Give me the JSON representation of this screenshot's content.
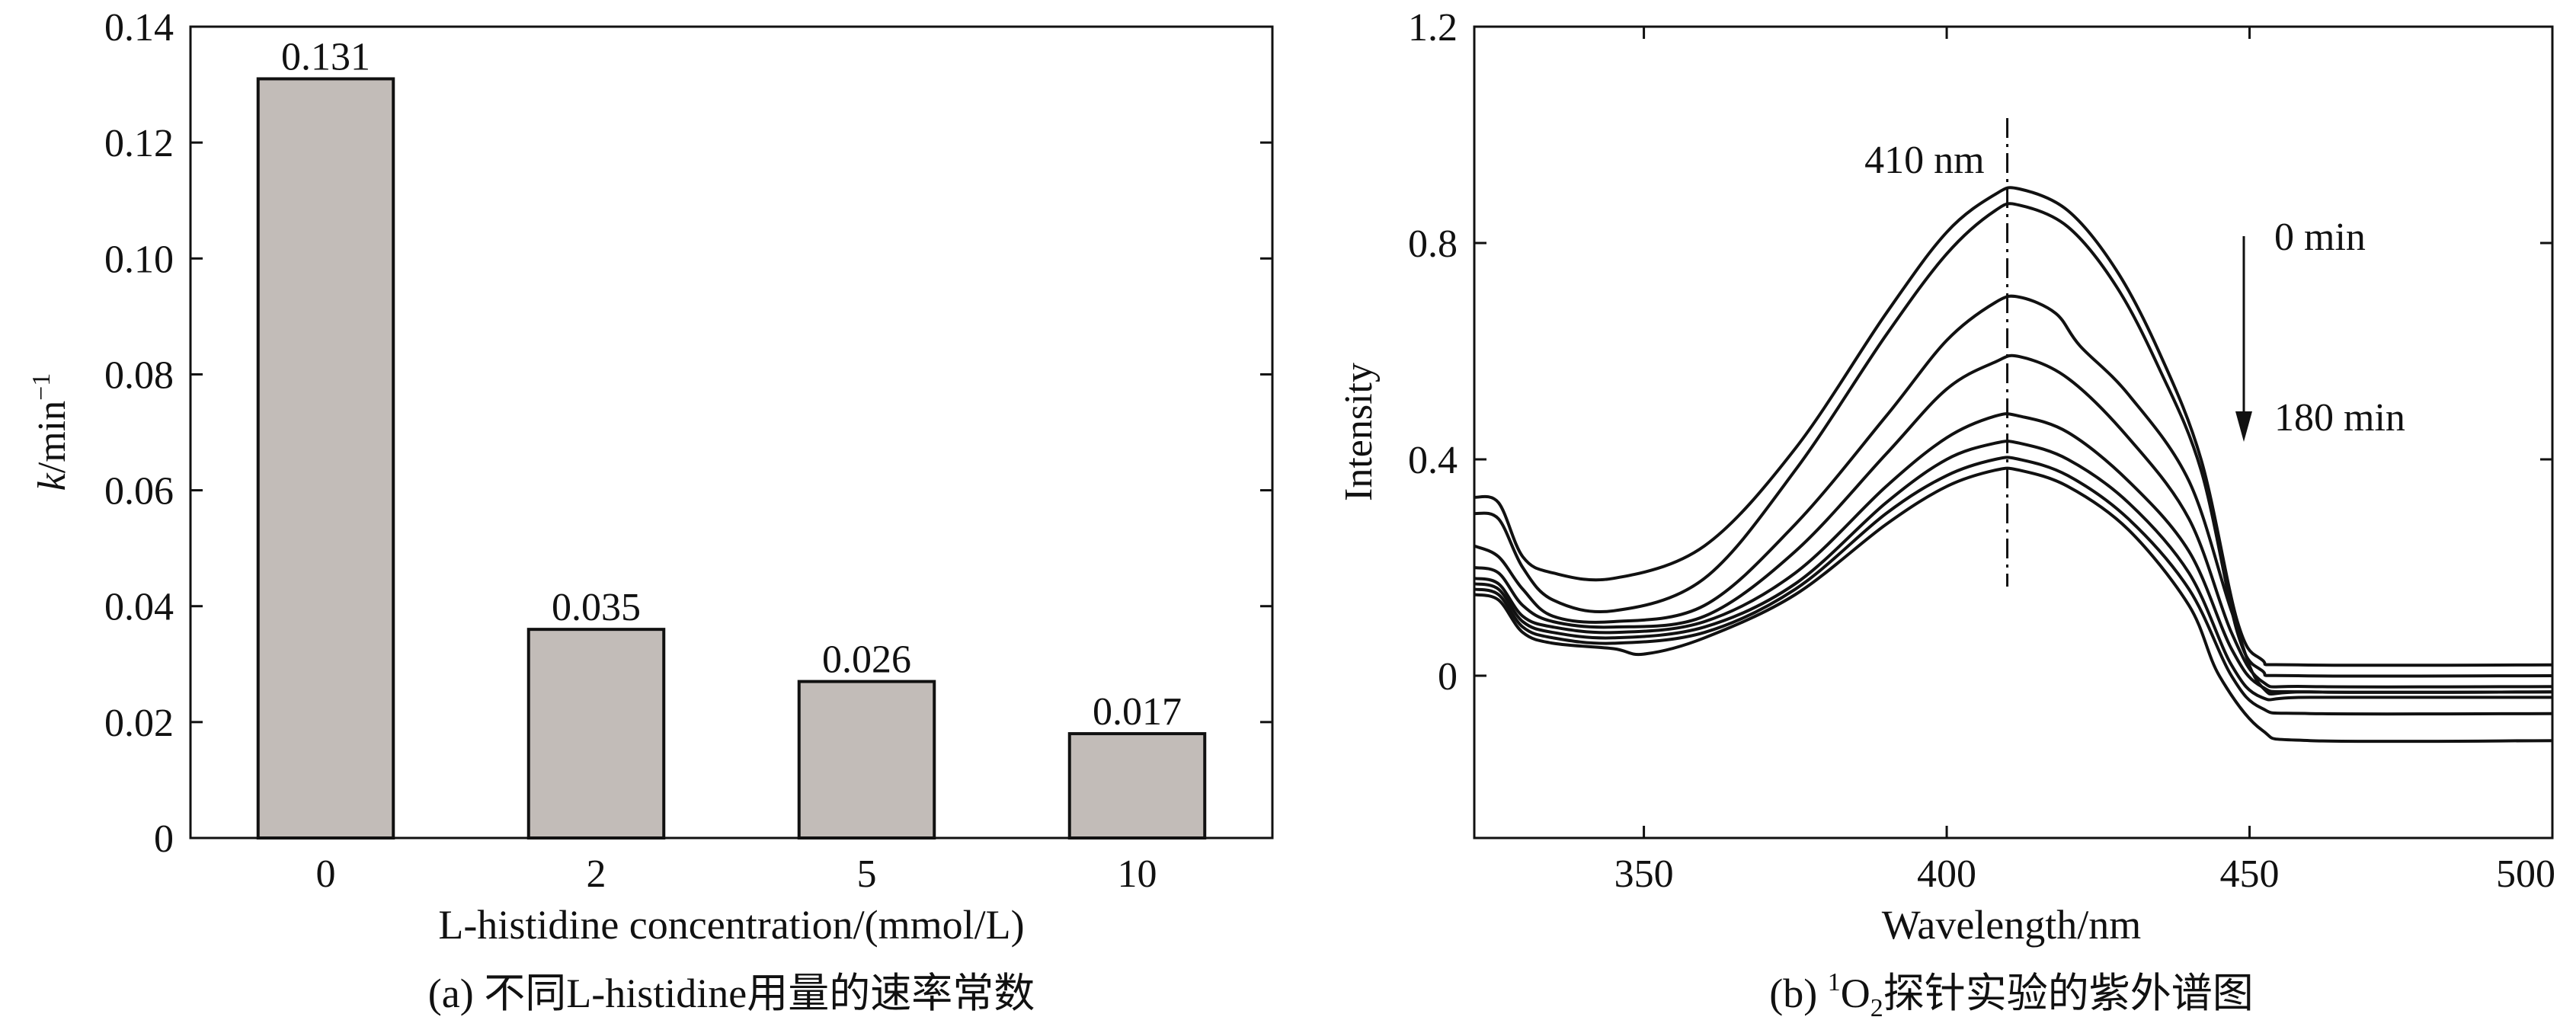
{
  "chart_data": [
    {
      "type": "bar",
      "caption": "(a) 不同L-histidine用量的速率常数",
      "xlabel": "L-histidine concentration/(mmol/L)",
      "ylabel_main": "k",
      "ylabel_unit": "/min",
      "ylabel_exp": "−1",
      "categories": [
        "0",
        "2",
        "5",
        "10"
      ],
      "values": [
        0.131,
        0.035,
        0.026,
        0.017
      ],
      "data_labels": [
        "0.131",
        "0.035",
        "0.026",
        "0.017"
      ],
      "ylim": [
        0,
        0.14
      ],
      "yticks": [
        0,
        0.02,
        0.04,
        0.06,
        0.08,
        0.1,
        0.12,
        0.14
      ],
      "ytick_labels": [
        "0",
        "0.02",
        "0.04",
        "0.06",
        "0.08",
        "0.10",
        "0.12",
        "0.14"
      ],
      "bar_value_heights": [
        0.131,
        0.036,
        0.027,
        0.018
      ],
      "bar_color": "#c2bcb8"
    },
    {
      "type": "line",
      "caption_prefix": "(b) ",
      "caption_sup": "1",
      "caption_o": "O",
      "caption_sub": "2",
      "caption_suffix": "探针实验的紫外谱图",
      "xlabel": "Wavelength/nm",
      "ylabel": "Intensity",
      "xlim": [
        322,
        500
      ],
      "ylim": [
        -0.3,
        1.2
      ],
      "xticks": [
        350,
        400,
        450,
        500
      ],
      "xtick_labels": [
        "350",
        "400",
        "450",
        "500"
      ],
      "yticks": [
        0,
        0.4,
        0.8,
        1.2
      ],
      "ytick_labels": [
        "0",
        "0.4",
        "0.8",
        "1.2"
      ],
      "reference_line_x": 410,
      "reference_label": "410 nm",
      "arrow_start_label": "0 min",
      "arrow_end_label": "180 min",
      "series": [
        {
          "name": "s1",
          "points": [
            [
              322,
              0.33
            ],
            [
              326,
              0.32
            ],
            [
              330,
              0.22
            ],
            [
              335,
              0.19
            ],
            [
              345,
              0.18
            ],
            [
              360,
              0.24
            ],
            [
              375,
              0.42
            ],
            [
              390,
              0.67
            ],
            [
              400,
              0.82
            ],
            [
              408,
              0.89
            ],
            [
              412,
              0.9
            ],
            [
              420,
              0.86
            ],
            [
              428,
              0.75
            ],
            [
              435,
              0.6
            ],
            [
              442,
              0.4
            ],
            [
              448,
              0.1
            ],
            [
              452,
              0.03
            ],
            [
              458,
              0.02
            ],
            [
              500,
              0.02
            ]
          ]
        },
        {
          "name": "s2",
          "points": [
            [
              322,
              0.3
            ],
            [
              326,
              0.29
            ],
            [
              330,
              0.2
            ],
            [
              335,
              0.14
            ],
            [
              345,
              0.12
            ],
            [
              360,
              0.18
            ],
            [
              375,
              0.38
            ],
            [
              390,
              0.63
            ],
            [
              400,
              0.78
            ],
            [
              408,
              0.86
            ],
            [
              412,
              0.87
            ],
            [
              420,
              0.83
            ],
            [
              428,
              0.72
            ],
            [
              435,
              0.57
            ],
            [
              442,
              0.38
            ],
            [
              448,
              0.08
            ],
            [
              452,
              0.01
            ],
            [
              458,
              0.0
            ],
            [
              500,
              0.0
            ]
          ]
        },
        {
          "name": "s3",
          "points": [
            [
              322,
              0.24
            ],
            [
              326,
              0.22
            ],
            [
              330,
              0.16
            ],
            [
              335,
              0.11
            ],
            [
              345,
              0.1
            ],
            [
              360,
              0.13
            ],
            [
              375,
              0.28
            ],
            [
              390,
              0.48
            ],
            [
              400,
              0.62
            ],
            [
              408,
              0.69
            ],
            [
              412,
              0.7
            ],
            [
              418,
              0.67
            ],
            [
              422,
              0.61
            ],
            [
              430,
              0.52
            ],
            [
              440,
              0.36
            ],
            [
              447,
              0.12
            ],
            [
              452,
              -0.02
            ],
            [
              460,
              -0.03
            ],
            [
              500,
              -0.03
            ]
          ]
        },
        {
          "name": "s4",
          "points": [
            [
              322,
              0.2
            ],
            [
              326,
              0.19
            ],
            [
              330,
              0.13
            ],
            [
              335,
              0.1
            ],
            [
              345,
              0.09
            ],
            [
              360,
              0.11
            ],
            [
              375,
              0.23
            ],
            [
              390,
              0.41
            ],
            [
              400,
              0.53
            ],
            [
              408,
              0.58
            ],
            [
              412,
              0.59
            ],
            [
              420,
              0.55
            ],
            [
              430,
              0.44
            ],
            [
              440,
              0.29
            ],
            [
              447,
              0.08
            ],
            [
              452,
              -0.01
            ],
            [
              460,
              -0.02
            ],
            [
              500,
              -0.02
            ]
          ]
        },
        {
          "name": "s5",
          "points": [
            [
              322,
              0.18
            ],
            [
              326,
              0.17
            ],
            [
              330,
              0.11
            ],
            [
              335,
              0.09
            ],
            [
              345,
              0.08
            ],
            [
              360,
              0.1
            ],
            [
              375,
              0.19
            ],
            [
              390,
              0.35
            ],
            [
              400,
              0.44
            ],
            [
              408,
              0.48
            ],
            [
              412,
              0.48
            ],
            [
              420,
              0.45
            ],
            [
              430,
              0.36
            ],
            [
              440,
              0.23
            ],
            [
              447,
              0.05
            ],
            [
              452,
              -0.02
            ],
            [
              460,
              -0.03
            ],
            [
              500,
              -0.03
            ]
          ]
        },
        {
          "name": "s6",
          "points": [
            [
              322,
              0.17
            ],
            [
              326,
              0.16
            ],
            [
              330,
              0.1
            ],
            [
              335,
              0.08
            ],
            [
              345,
              0.07
            ],
            [
              360,
              0.09
            ],
            [
              375,
              0.17
            ],
            [
              390,
              0.32
            ],
            [
              400,
              0.4
            ],
            [
              408,
              0.43
            ],
            [
              412,
              0.43
            ],
            [
              420,
              0.4
            ],
            [
              430,
              0.32
            ],
            [
              440,
              0.19
            ],
            [
              447,
              0.02
            ],
            [
              452,
              -0.04
            ],
            [
              460,
              -0.04
            ],
            [
              500,
              -0.04
            ]
          ]
        },
        {
          "name": "s7",
          "points": [
            [
              322,
              0.16
            ],
            [
              326,
              0.15
            ],
            [
              330,
              0.09
            ],
            [
              335,
              0.07
            ],
            [
              345,
              0.06
            ],
            [
              360,
              0.08
            ],
            [
              375,
              0.16
            ],
            [
              390,
              0.3
            ],
            [
              400,
              0.37
            ],
            [
              408,
              0.4
            ],
            [
              412,
              0.4
            ],
            [
              420,
              0.37
            ],
            [
              430,
              0.29
            ],
            [
              440,
              0.16
            ],
            [
              447,
              0.0
            ],
            [
              452,
              -0.06
            ],
            [
              460,
              -0.07
            ],
            [
              500,
              -0.07
            ]
          ]
        },
        {
          "name": "s8",
          "points": [
            [
              322,
              0.15
            ],
            [
              326,
              0.14
            ],
            [
              330,
              0.08
            ],
            [
              335,
              0.06
            ],
            [
              345,
              0.05
            ],
            [
              350,
              0.04
            ],
            [
              360,
              0.07
            ],
            [
              375,
              0.15
            ],
            [
              390,
              0.28
            ],
            [
              400,
              0.35
            ],
            [
              408,
              0.38
            ],
            [
              412,
              0.38
            ],
            [
              420,
              0.35
            ],
            [
              430,
              0.27
            ],
            [
              440,
              0.13
            ],
            [
              445,
              0.0
            ],
            [
              452,
              -0.1
            ],
            [
              460,
              -0.12
            ],
            [
              500,
              -0.12
            ]
          ]
        }
      ]
    }
  ]
}
